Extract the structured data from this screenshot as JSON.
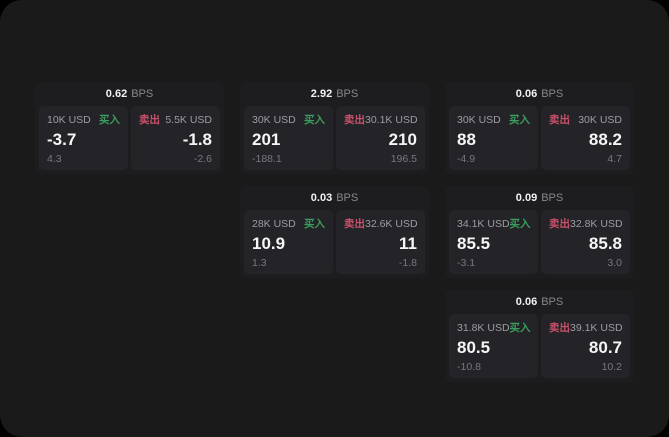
{
  "colors": {
    "page_bg": "#1a1a1b",
    "card_bg": "#1d1d20",
    "panel_bg": "#242428",
    "buy_green": "#3a9e5f",
    "sell_red": "#c8506a",
    "value_white": "#f5f5f6",
    "label_gray": "#9d9da1",
    "sub_gray": "#78787c"
  },
  "labels": {
    "bps_unit": "BPS",
    "buy": "买入",
    "sell": "卖出"
  },
  "cards": [
    {
      "bps": "0.62",
      "grid": {
        "row": 1,
        "col": 1
      },
      "buy": {
        "amount": "10K USD",
        "value": "-3.7",
        "sub": "4.3"
      },
      "sell": {
        "amount": "5.5K USD",
        "value": "-1.8",
        "sub": "-2.6"
      }
    },
    {
      "bps": "2.92",
      "grid": {
        "row": 1,
        "col": 2
      },
      "buy": {
        "amount": "30K USD",
        "value": "201",
        "sub": "-188.1"
      },
      "sell": {
        "amount": "30.1K USD",
        "value": "210",
        "sub": "196.5"
      }
    },
    {
      "bps": "0.06",
      "grid": {
        "row": 1,
        "col": 3
      },
      "buy": {
        "amount": "30K USD",
        "value": "88",
        "sub": "-4.9"
      },
      "sell": {
        "amount": "30K USD",
        "value": "88.2",
        "sub": "4.7"
      }
    },
    {
      "bps": "0.03",
      "grid": {
        "row": 2,
        "col": 2
      },
      "buy": {
        "amount": "28K USD",
        "value": "10.9",
        "sub": "1.3"
      },
      "sell": {
        "amount": "32.6K USD",
        "value": "11",
        "sub": "-1.8"
      }
    },
    {
      "bps": "0.09",
      "grid": {
        "row": 2,
        "col": 3
      },
      "buy": {
        "amount": "34.1K USD",
        "value": "85.5",
        "sub": "-3.1"
      },
      "sell": {
        "amount": "32.8K USD",
        "value": "85.8",
        "sub": "3.0"
      }
    },
    {
      "bps": "0.06",
      "grid": {
        "row": 3,
        "col": 3
      },
      "buy": {
        "amount": "31.8K USD",
        "value": "80.5",
        "sub": "-10.8"
      },
      "sell": {
        "amount": "39.1K USD",
        "value": "80.7",
        "sub": "10.2"
      }
    }
  ]
}
